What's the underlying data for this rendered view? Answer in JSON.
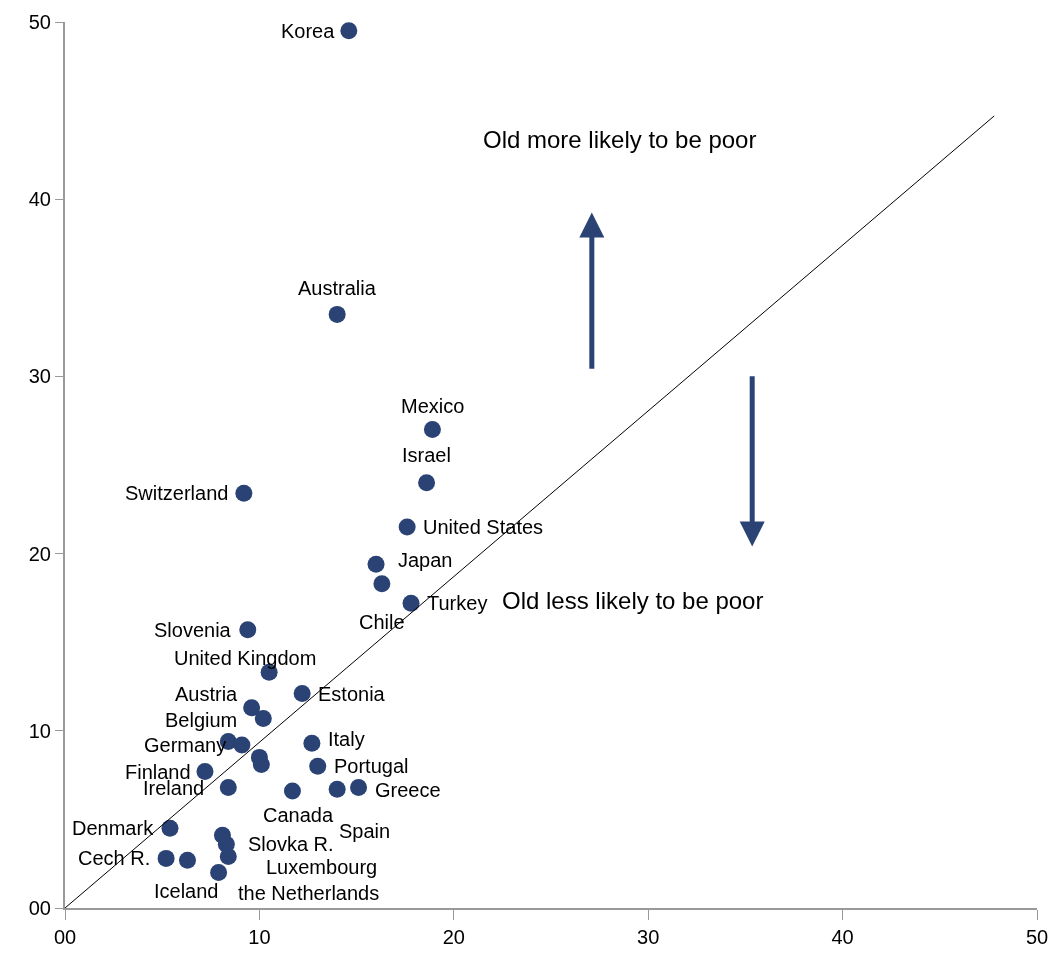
{
  "chart_data": {
    "type": "scatter",
    "xlim": [
      0,
      50
    ],
    "ylim": [
      0,
      50
    ],
    "xticks": [
      {
        "value": 0,
        "label": "00"
      },
      10,
      20,
      30,
      40,
      50
    ],
    "yticks": [
      {
        "value": 0,
        "label": "00"
      },
      10,
      20,
      30,
      40,
      50
    ],
    "grid": false,
    "marker": "circle",
    "series": [
      {
        "color": "#2a4374",
        "x": [
          14.6,
          14.0,
          18.9,
          18.6,
          9.2,
          17.6,
          16.0,
          16.3,
          17.8,
          9.4,
          10.5,
          12.2,
          9.6,
          10.2,
          8.4,
          9.1,
          12.7,
          10.0,
          10.1,
          13.0,
          7.2,
          8.4,
          11.7,
          14.0,
          15.1,
          5.4,
          8.1,
          8.3,
          8.4,
          5.2,
          6.3,
          7.9
        ],
        "values": [
          49.5,
          33.5,
          27.0,
          24.0,
          23.4,
          21.5,
          19.4,
          18.3,
          17.2,
          15.7,
          13.3,
          12.1,
          11.3,
          10.7,
          9.4,
          9.2,
          9.3,
          8.5,
          8.1,
          8.0,
          7.7,
          6.8,
          6.6,
          6.7,
          6.8,
          4.5,
          4.1,
          3.6,
          2.9,
          2.8,
          2.7,
          2.0
        ]
      },
      {
        "type": "line",
        "marker": "none",
        "color": "#000000",
        "x": [
          0,
          47.8
        ],
        "values": [
          0,
          44.7
        ]
      }
    ],
    "annotations": [
      {
        "text": "Korea",
        "x": 14.6,
        "y": 49.5
      },
      {
        "text": "Australia",
        "x": 14.0,
        "y": 33.5
      },
      {
        "text": "Mexico",
        "x": 18.9,
        "y": 27.0
      },
      {
        "text": "Israel",
        "x": 18.6,
        "y": 24.0
      },
      {
        "text": "Switzerland",
        "x": 9.2,
        "y": 23.4
      },
      {
        "text": "United States",
        "x": 17.6,
        "y": 21.5
      },
      {
        "text": "Japan",
        "x": 16.0,
        "y": 19.4
      },
      {
        "text": "Chile",
        "x": 16.3,
        "y": 18.3
      },
      {
        "text": "Turkey",
        "x": 17.8,
        "y": 17.2
      },
      {
        "text": "Slovenia",
        "x": 9.4,
        "y": 15.7
      },
      {
        "text": "United Kingdom",
        "x": 10.5,
        "y": 13.3
      },
      {
        "text": "Estonia",
        "x": 12.2,
        "y": 12.1
      },
      {
        "text": "Austria",
        "x": 9.6,
        "y": 11.3
      },
      {
        "text": "Belgium",
        "x": 10.2,
        "y": 10.7
      },
      {
        "text": "Germany",
        "x": 8.4,
        "y": 9.4
      },
      {
        "text": "Italy",
        "x": 12.7,
        "y": 9.3
      },
      {
        "text": "Portugal",
        "x": 13.0,
        "y": 8.0
      },
      {
        "text": "Finland",
        "x": 7.2,
        "y": 7.7
      },
      {
        "text": "Ireland",
        "x": 8.4,
        "y": 6.8
      },
      {
        "text": "Canada",
        "x": 11.7,
        "y": 6.6
      },
      {
        "text": "Spain",
        "x": 14.0,
        "y": 6.7
      },
      {
        "text": "Greece",
        "x": 15.1,
        "y": 6.8
      },
      {
        "text": "Denmark",
        "x": 5.4,
        "y": 4.5
      },
      {
        "text": "Slovka R.",
        "x": 8.3,
        "y": 3.6
      },
      {
        "text": "Luxembourg",
        "x": 8.4,
        "y": 2.9
      },
      {
        "text": "Cech R.",
        "x": 5.2,
        "y": 2.8
      },
      {
        "text": "Iceland",
        "x": 7.9,
        "y": 2.0
      },
      {
        "text": "the Netherlands",
        "x": 8.1,
        "y": 4.1
      },
      "Old more likely to be poor",
      "Old less likely to be poor"
    ]
  }
}
